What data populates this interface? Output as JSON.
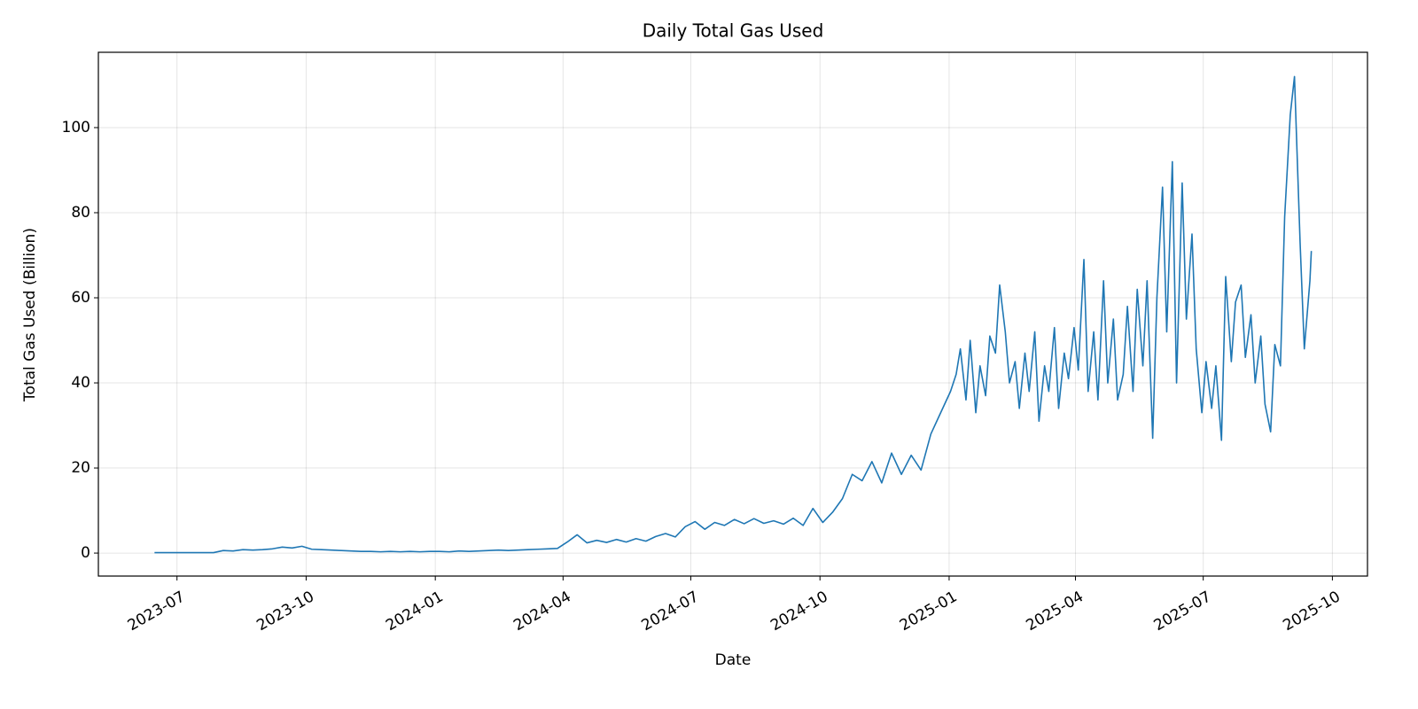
{
  "chart_data": {
    "type": "line",
    "title": "Daily Total Gas Used",
    "xlabel": "Date",
    "ylabel": "Total Gas Used (Billion)",
    "color": "#1f77b4",
    "grid": true,
    "x": [
      "2023-06-15",
      "2023-06-22",
      "2023-06-29",
      "2023-07-06",
      "2023-07-13",
      "2023-07-20",
      "2023-07-27",
      "2023-08-03",
      "2023-08-10",
      "2023-08-17",
      "2023-08-24",
      "2023-08-31",
      "2023-09-07",
      "2023-09-14",
      "2023-09-21",
      "2023-09-28",
      "2023-10-05",
      "2023-10-12",
      "2023-10-19",
      "2023-10-26",
      "2023-11-02",
      "2023-11-09",
      "2023-11-16",
      "2023-11-23",
      "2023-11-30",
      "2023-12-07",
      "2023-12-14",
      "2023-12-21",
      "2023-12-28",
      "2024-01-04",
      "2024-01-11",
      "2024-01-18",
      "2024-01-25",
      "2024-02-01",
      "2024-02-08",
      "2024-02-15",
      "2024-02-22",
      "2024-02-29",
      "2024-03-07",
      "2024-03-14",
      "2024-03-21",
      "2024-03-28",
      "2024-04-04",
      "2024-04-11",
      "2024-04-18",
      "2024-04-25",
      "2024-05-02",
      "2024-05-09",
      "2024-05-16",
      "2024-05-23",
      "2024-05-30",
      "2024-06-06",
      "2024-06-13",
      "2024-06-20",
      "2024-06-27",
      "2024-07-04",
      "2024-07-11",
      "2024-07-18",
      "2024-07-25",
      "2024-08-01",
      "2024-08-08",
      "2024-08-15",
      "2024-08-22",
      "2024-08-29",
      "2024-09-05",
      "2024-09-12",
      "2024-09-19",
      "2024-09-26",
      "2024-10-03",
      "2024-10-10",
      "2024-10-17",
      "2024-10-24",
      "2024-10-31",
      "2024-11-07",
      "2024-11-14",
      "2024-11-21",
      "2024-11-28",
      "2024-12-05",
      "2024-12-12",
      "2024-12-19",
      "2024-12-26",
      "2025-01-02",
      "2025-01-06",
      "2025-01-09",
      "2025-01-13",
      "2025-01-16",
      "2025-01-20",
      "2025-01-23",
      "2025-01-27",
      "2025-01-30",
      "2025-02-03",
      "2025-02-06",
      "2025-02-10",
      "2025-02-13",
      "2025-02-17",
      "2025-02-20",
      "2025-02-24",
      "2025-02-27",
      "2025-03-03",
      "2025-03-06",
      "2025-03-10",
      "2025-03-13",
      "2025-03-17",
      "2025-03-20",
      "2025-03-24",
      "2025-03-27",
      "2025-03-31",
      "2025-04-03",
      "2025-04-07",
      "2025-04-10",
      "2025-04-14",
      "2025-04-17",
      "2025-04-21",
      "2025-04-24",
      "2025-04-28",
      "2025-05-01",
      "2025-05-05",
      "2025-05-08",
      "2025-05-12",
      "2025-05-15",
      "2025-05-19",
      "2025-05-22",
      "2025-05-26",
      "2025-05-29",
      "2025-06-02",
      "2025-06-05",
      "2025-06-09",
      "2025-06-12",
      "2025-06-16",
      "2025-06-19",
      "2025-06-23",
      "2025-06-26",
      "2025-06-30",
      "2025-07-03",
      "2025-07-07",
      "2025-07-10",
      "2025-07-14",
      "2025-07-17",
      "2025-07-21",
      "2025-07-24",
      "2025-07-28",
      "2025-07-31",
      "2025-08-04",
      "2025-08-07",
      "2025-08-11",
      "2025-08-14",
      "2025-08-18",
      "2025-08-21",
      "2025-08-25",
      "2025-08-28",
      "2025-09-01",
      "2025-09-04",
      "2025-09-08",
      "2025-09-11",
      "2025-09-15",
      "2025-09-16"
    ],
    "values": [
      0.1,
      0.1,
      0.1,
      0.1,
      0.1,
      0.1,
      0.1,
      0.6,
      0.5,
      0.8,
      0.7,
      0.8,
      1.0,
      1.4,
      1.2,
      1.6,
      0.9,
      0.8,
      0.7,
      0.6,
      0.5,
      0.4,
      0.4,
      0.3,
      0.4,
      0.3,
      0.4,
      0.3,
      0.4,
      0.4,
      0.3,
      0.5,
      0.4,
      0.5,
      0.6,
      0.7,
      0.6,
      0.7,
      0.8,
      0.9,
      1.0,
      1.1,
      2.6,
      4.3,
      2.4,
      3.0,
      2.5,
      3.2,
      2.6,
      3.4,
      2.8,
      3.9,
      4.6,
      3.8,
      6.2,
      7.4,
      5.6,
      7.2,
      6.5,
      7.9,
      6.9,
      8.1,
      7.0,
      7.6,
      6.8,
      8.2,
      6.5,
      10.5,
      7.2,
      9.6,
      12.8,
      18.5,
      17.0,
      21.5,
      16.5,
      23.5,
      18.5,
      23.0,
      19.5,
      28.0,
      33.0,
      38,
      42,
      48,
      36,
      50,
      33,
      44,
      37,
      51,
      47,
      63,
      52,
      40,
      45,
      34,
      47,
      38,
      52,
      31,
      44,
      38,
      53,
      34,
      47,
      41,
      53,
      43,
      69,
      38,
      52,
      36,
      64,
      40,
      55,
      36,
      42,
      58,
      38,
      62,
      44,
      64,
      27,
      60,
      86,
      52,
      92,
      40,
      87,
      55,
      75,
      48,
      33,
      45,
      34,
      44,
      26.5,
      65,
      45,
      59,
      63,
      46,
      56,
      40,
      51,
      35,
      28.5,
      49,
      44,
      79,
      103,
      112,
      73,
      48,
      64,
      71
    ],
    "xlim": [
      "2023-05-06",
      "2025-10-26"
    ],
    "xticks": [
      {
        "value": "2023-07-01",
        "label": "2023-07"
      },
      {
        "value": "2023-10-01",
        "label": "2023-10"
      },
      {
        "value": "2024-01-01",
        "label": "2024-01"
      },
      {
        "value": "2024-04-01",
        "label": "2024-04"
      },
      {
        "value": "2024-07-01",
        "label": "2024-07"
      },
      {
        "value": "2024-10-01",
        "label": "2024-10"
      },
      {
        "value": "2025-01-01",
        "label": "2025-01"
      },
      {
        "value": "2025-04-01",
        "label": "2025-04"
      },
      {
        "value": "2025-07-01",
        "label": "2025-07"
      },
      {
        "value": "2025-10-01",
        "label": "2025-10"
      }
    ],
    "ylim": [
      -5.4,
      117.7
    ],
    "yticks": [
      0,
      20,
      40,
      60,
      80,
      100
    ]
  }
}
